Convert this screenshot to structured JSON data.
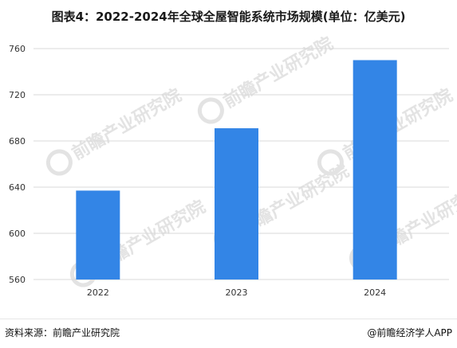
{
  "title": "图表4：2022-2024年全球全屋智能系统市场规模(单位：亿美元)",
  "watermark_text": "前瞻产业研究院",
  "footer": {
    "source": "资料来源：前瞻产业研究院",
    "brand": "@前瞻经济学人APP"
  },
  "colors": {
    "bar": "#3385e6",
    "grid": "#d9d9d9",
    "axis_text": "#333333",
    "watermark": "#e3e3e3"
  },
  "chart_data": {
    "type": "bar",
    "title": "图表4：2022-2024年全球全屋智能系统市场规模(单位：亿美元)",
    "categories": [
      "2022",
      "2023",
      "2024"
    ],
    "values": [
      637,
      691,
      750
    ],
    "ylim": [
      560,
      760
    ],
    "yticks": [
      560,
      600,
      640,
      680,
      720,
      760
    ],
    "xlabel": "",
    "ylabel": "",
    "grid": true,
    "legend": "none"
  }
}
